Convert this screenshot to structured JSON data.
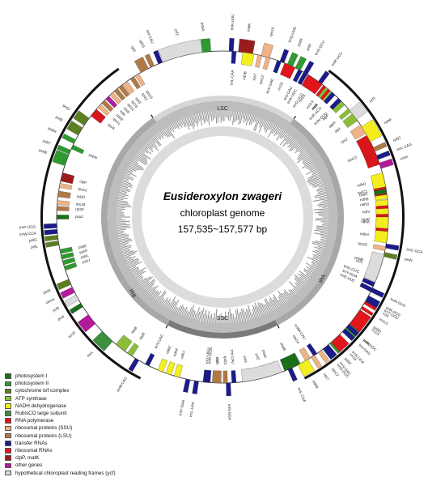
{
  "title": {
    "species": "Eusideroxylon zwageri",
    "subtitle": "chloroplast genome",
    "size": "157,535~157,577 bp"
  },
  "regions": {
    "lsc": "LSC",
    "ssc": "SSC",
    "ira": "IRA",
    "irb": "IRB"
  },
  "colors": {
    "photosystem_I": "#1a6f1a",
    "photosystem_II": "#2f9a2f",
    "cytochrome": "#5c7f22",
    "atp": "#8abe3a",
    "nadh": "#f4ee1e",
    "rubisco": "#3d8f3d",
    "rna_pol": "#d8161c",
    "ssu": "#eeb386",
    "lsu": "#b07a48",
    "trna": "#1b1b8a",
    "rrna": "#e0161c",
    "clpp": "#9b1c1c",
    "other": "#b4199a",
    "ycf": "#dcdcdc"
  },
  "legend": [
    {
      "label": "photosystem I",
      "color": "#1a6f1a"
    },
    {
      "label": "photosystem II",
      "color": "#2f9a2f"
    },
    {
      "label": "cytochrome b/f complex",
      "color": "#5c7f22"
    },
    {
      "label": "ATP synthase",
      "color": "#8abe3a"
    },
    {
      "label": "NADH dehydrogenase",
      "color": "#f4ee1e"
    },
    {
      "label": "RubisCO large subunit",
      "color": "#3d8f3d"
    },
    {
      "label": "RNA polymerase",
      "color": "#d8161c"
    },
    {
      "label": "ribosomal proteins (SSU)",
      "color": "#eeb386"
    },
    {
      "label": "ribosomal proteins (LSU)",
      "color": "#b07a48"
    },
    {
      "label": "transfer RNAs",
      "color": "#1b1b8a"
    },
    {
      "label": "ribosomal RNAs",
      "color": "#e0161c"
    },
    {
      "label": "clpP, matK",
      "color": "#9b1c1c"
    },
    {
      "label": "other genes",
      "color": "#b4199a"
    },
    {
      "label": "hypothetical chloroplast reading frames (ycf)",
      "color": "#dcdcdc"
    }
  ],
  "genes": [
    {
      "name": "psbA",
      "cat": "photosystem_II",
      "angle": 354,
      "side": "out",
      "span": 4
    },
    {
      "name": "trnK-UUU",
      "cat": "trna",
      "angle": 3,
      "side": "out",
      "span": 1.5
    },
    {
      "name": "matK",
      "cat": "clpp",
      "angle": 8,
      "side": "out",
      "span": 5
    },
    {
      "name": "rps16",
      "cat": "ssu",
      "angle": 15,
      "side": "out",
      "span": 3
    },
    {
      "name": "trnQ-UUG",
      "cat": "trna",
      "angle": 21,
      "side": "out",
      "span": 1.5
    },
    {
      "name": "psbK",
      "cat": "photosystem_II",
      "angle": 24,
      "side": "out",
      "span": 2
    },
    {
      "name": "psbI",
      "cat": "photosystem_II",
      "angle": 27,
      "side": "out",
      "span": 2
    },
    {
      "name": "trnS-GCU",
      "cat": "trna",
      "angle": 30,
      "side": "out",
      "span": 1.5
    },
    {
      "name": "trnG-UCC",
      "cat": "trna",
      "angle": 33,
      "side": "in",
      "span": 1.5
    },
    {
      "name": "trnR-UCU",
      "cat": "trna",
      "angle": 36,
      "side": "out",
      "span": 1.5
    },
    {
      "name": "atpA",
      "cat": "atp",
      "angle": 40,
      "side": "in",
      "span": 5
    },
    {
      "name": "atpF",
      "cat": "atp",
      "angle": 46,
      "side": "in",
      "span": 3
    },
    {
      "name": "atpH",
      "cat": "atp",
      "angle": 50,
      "side": "in",
      "span": 1.5
    },
    {
      "name": "atpI",
      "cat": "atp",
      "angle": 53,
      "side": "in",
      "span": 3
    },
    {
      "name": "rps2",
      "cat": "ssu",
      "angle": 58,
      "side": "in",
      "span": 3.5
    },
    {
      "name": "rpoC2",
      "cat": "rna_pol",
      "angle": 66,
      "side": "in",
      "span": 11
    },
    {
      "name": "rpoC1",
      "cat": "rna_pol",
      "angle": 80,
      "side": "in",
      "span": 7
    },
    {
      "name": "rpoB",
      "cat": "rna_pol",
      "angle": 91,
      "side": "in",
      "span": 10
    },
    {
      "name": "trnC-GCA",
      "cat": "trna",
      "angle": 100,
      "side": "out",
      "span": 1.5
    },
    {
      "name": "petN",
      "cat": "cytochrome",
      "angle": 103,
      "side": "out",
      "span": 1.5
    },
    {
      "name": "psbM",
      "cat": "photosystem_II",
      "angle": 107,
      "side": "in",
      "span": 1.5
    },
    {
      "name": "trnD-GUC",
      "cat": "trna",
      "angle": 112,
      "side": "in",
      "span": 1.5
    },
    {
      "name": "trnY-GUA",
      "cat": "trna",
      "angle": 114,
      "side": "in",
      "span": 1.5
    },
    {
      "name": "trnE-UUC",
      "cat": "trna",
      "angle": 116,
      "side": "in",
      "span": 1.5
    },
    {
      "name": "trnT-GGU",
      "cat": "trna",
      "angle": 120,
      "side": "out",
      "span": 1.5
    },
    {
      "name": "psbD",
      "cat": "photosystem_II",
      "angle": 126,
      "side": "out",
      "span": 4
    },
    {
      "name": "psbC",
      "cat": "photosystem_II",
      "angle": 131,
      "side": "out",
      "span": 5
    },
    {
      "name": "trnS-UGA",
      "cat": "trna",
      "angle": 136,
      "side": "out",
      "span": 1.5
    },
    {
      "name": "psbZ",
      "cat": "photosystem_II",
      "angle": 139,
      "side": "out",
      "span": 1.5
    },
    {
      "name": "trnG-GCC",
      "cat": "trna",
      "angle": 142,
      "side": "out",
      "span": 1.5
    },
    {
      "name": "trnfM-CAU",
      "cat": "trna",
      "angle": 146,
      "side": "in",
      "span": 1.5
    },
    {
      "name": "rps14",
      "cat": "ssu",
      "angle": 149,
      "side": "in",
      "span": 2
    },
    {
      "name": "psaB",
      "cat": "photosystem_I",
      "angle": 155,
      "side": "in",
      "span": 6
    },
    {
      "name": "psaA",
      "cat": "photosystem_I",
      "angle": 163,
      "side": "in",
      "span": 6
    },
    {
      "name": "ycf3",
      "cat": "ycf",
      "angle": 171,
      "side": "in",
      "span": 3
    },
    {
      "name": "trnS-GGA",
      "cat": "trna",
      "angle": 178,
      "side": "out",
      "span": 1.5
    },
    {
      "name": "rps4",
      "cat": "ssu",
      "angle": 182,
      "side": "in",
      "span": 3
    },
    {
      "name": "trnT-UGU",
      "cat": "trna",
      "angle": 186,
      "side": "in",
      "span": 1.5
    },
    {
      "name": "trnL-UAA",
      "cat": "trna",
      "angle": 189,
      "side": "out",
      "span": 1.5
    },
    {
      "name": "trnF-GAA",
      "cat": "trna",
      "angle": 192,
      "side": "out",
      "span": 1.5
    },
    {
      "name": "ndhJ",
      "cat": "nadh",
      "angle": 196,
      "side": "in",
      "span": 2
    },
    {
      "name": "ndhK",
      "cat": "nadh",
      "angle": 199,
      "side": "in",
      "span": 2
    },
    {
      "name": "ndhC",
      "cat": "nadh",
      "angle": 202,
      "side": "in",
      "span": 2
    },
    {
      "name": "trnV-UAC",
      "cat": "trna",
      "angle": 207,
      "side": "in",
      "span": 1.5
    },
    {
      "name": "trnM-CAU",
      "cat": "trna",
      "angle": 211,
      "side": "out",
      "span": 1.5
    },
    {
      "name": "atpE",
      "cat": "atp",
      "angle": 214,
      "side": "in",
      "span": 2
    },
    {
      "name": "atpB",
      "cat": "atp",
      "angle": 218,
      "side": "in",
      "span": 4
    },
    {
      "name": "rbcL",
      "cat": "rubisco",
      "angle": 224,
      "side": "out",
      "span": 5
    },
    {
      "name": "accD",
      "cat": "other",
      "angle": 232,
      "side": "out",
      "span": 4
    },
    {
      "name": "psaI",
      "cat": "photosystem_I",
      "angle": 238,
      "side": "out",
      "span": 1.5
    },
    {
      "name": "ycf4",
      "cat": "ycf",
      "angle": 241,
      "side": "out",
      "span": 2
    },
    {
      "name": "cemA",
      "cat": "other",
      "angle": 244,
      "side": "out",
      "span": 2
    },
    {
      "name": "petA",
      "cat": "cytochrome",
      "angle": 247,
      "side": "out",
      "span": 2
    },
    {
      "name": "psbJ",
      "cat": "photosystem_II",
      "angle": 252,
      "side": "in",
      "span": 1.5
    },
    {
      "name": "psbL",
      "cat": "photosystem_II",
      "angle": 254,
      "side": "in",
      "span": 1.5
    },
    {
      "name": "psbF",
      "cat": "photosystem_II",
      "angle": 256,
      "side": "in",
      "span": 1.5
    },
    {
      "name": "psbE",
      "cat": "photosystem_II",
      "angle": 258,
      "side": "in",
      "span": 1.5
    },
    {
      "name": "petL",
      "cat": "cytochrome",
      "angle": 261,
      "side": "out",
      "span": 1.5
    },
    {
      "name": "petG",
      "cat": "cytochrome",
      "angle": 263,
      "side": "out",
      "span": 1.5
    },
    {
      "name": "trnW-CCA",
      "cat": "trna",
      "angle": 265,
      "side": "out",
      "span": 1.5
    },
    {
      "name": "trnP-UGG",
      "cat": "trna",
      "angle": 267,
      "side": "out",
      "span": 1.5
    },
    {
      "name": "psaJ",
      "cat": "photosystem_I",
      "angle": 270,
      "side": "in",
      "span": 1.5
    },
    {
      "name": "rpl33",
      "cat": "lsu",
      "angle": 273,
      "side": "in",
      "span": 1.5
    },
    {
      "name": "rps18",
      "cat": "ssu",
      "angle": 275,
      "side": "in",
      "span": 1.5
    },
    {
      "name": "rpl20",
      "cat": "lsu",
      "angle": 278,
      "side": "in",
      "span": 2
    },
    {
      "name": "rps12",
      "cat": "ssu",
      "angle": 281,
      "side": "in",
      "span": 1.5
    },
    {
      "name": "clpP",
      "cat": "clpp",
      "angle": 284,
      "side": "in",
      "span": 3
    },
    {
      "name": "psbB",
      "cat": "photosystem_II",
      "angle": 290,
      "side": "out",
      "span": 4
    },
    {
      "name": "psbT",
      "cat": "photosystem_II",
      "angle": 293,
      "side": "out",
      "span": 1.5
    },
    {
      "name": "psbN",
      "cat": "photosystem_II",
      "angle": 295,
      "side": "in",
      "span": 1.5
    },
    {
      "name": "psbH",
      "cat": "photosystem_II",
      "angle": 297,
      "side": "out",
      "span": 1.5
    },
    {
      "name": "petB",
      "cat": "cytochrome",
      "angle": 301,
      "side": "out",
      "span": 3
    },
    {
      "name": "petD",
      "cat": "cytochrome",
      "angle": 305,
      "side": "out",
      "span": 3
    },
    {
      "name": "rpoA",
      "cat": "rna_pol",
      "angle": 309,
      "side": "in",
      "span": 3
    },
    {
      "name": "rps11",
      "cat": "ssu",
      "angle": 312,
      "side": "in",
      "span": 1.5
    },
    {
      "name": "rpl36",
      "cat": "lsu",
      "angle": 314,
      "side": "in",
      "span": 1.5
    },
    {
      "name": "infA",
      "cat": "other",
      "angle": 316,
      "side": "in",
      "span": 1.5
    },
    {
      "name": "rps8",
      "cat": "ssu",
      "angle": 318,
      "side": "in",
      "span": 1.5
    },
    {
      "name": "rpl14",
      "cat": "lsu",
      "angle": 320,
      "side": "in",
      "span": 1.5
    },
    {
      "name": "rpl16",
      "cat": "lsu",
      "angle": 322,
      "side": "in",
      "span": 1.5
    },
    {
      "name": "rps3",
      "cat": "ssu",
      "angle": 324,
      "side": "in",
      "span": 2
    },
    {
      "name": "rpl22",
      "cat": "lsu",
      "angle": 327,
      "side": "in",
      "span": 1.5
    },
    {
      "name": "rps19",
      "cat": "ssu",
      "angle": 329,
      "side": "in",
      "span": 1.5
    },
    {
      "name": "rpl2",
      "cat": "lsu",
      "angle": 332,
      "side": "out",
      "span": 3
    },
    {
      "name": "rpl23",
      "cat": "lsu",
      "angle": 335,
      "side": "out",
      "span": 1.5
    },
    {
      "name": "trnI-CAU",
      "cat": "trna",
      "angle": 338,
      "side": "out",
      "span": 1.5
    },
    {
      "name": "ycf2",
      "cat": "ycf",
      "angle": 346,
      "side": "out",
      "span": 14
    },
    {
      "name": "trnL-CAA",
      "cat": "trna",
      "angle": 4,
      "side": "in",
      "span": 1.5,
      "ring": "right"
    },
    {
      "name": "ndhB",
      "cat": "nadh",
      "angle": 9,
      "side": "in",
      "span": 4,
      "ring": "right"
    },
    {
      "name": "rps7",
      "cat": "ssu",
      "angle": 13,
      "side": "in",
      "span": 1.5,
      "ring": "right"
    },
    {
      "name": "rps12",
      "cat": "ssu",
      "angle": 16,
      "side": "in",
      "span": 1.5,
      "ring": "right"
    },
    {
      "name": "trnV-GAC",
      "cat": "trna",
      "angle": 20,
      "side": "in",
      "span": 1.5,
      "ring": "right"
    },
    {
      "name": "rrn16",
      "cat": "rrna",
      "angle": 24,
      "side": "in",
      "span": 4,
      "ring": "right"
    },
    {
      "name": "trnI-GAU",
      "cat": "trna",
      "angle": 28,
      "side": "in",
      "span": 1.5,
      "ring": "right"
    },
    {
      "name": "trnA-UGC",
      "cat": "trna",
      "angle": 30,
      "side": "in",
      "span": 1.5,
      "ring": "right"
    },
    {
      "name": "rrn23",
      "cat": "rrna",
      "angle": 34,
      "side": "in",
      "span": 6,
      "ring": "right"
    },
    {
      "name": "rrn4.5",
      "cat": "rrna",
      "angle": 38,
      "side": "in",
      "span": 1,
      "ring": "right"
    },
    {
      "name": "rrn5",
      "cat": "rrna",
      "angle": 40,
      "side": "in",
      "span": 1,
      "ring": "right"
    },
    {
      "name": "trnR-ACG",
      "cat": "trna",
      "angle": 42,
      "side": "in",
      "span": 1.5,
      "ring": "right"
    },
    {
      "name": "trnN-GUU",
      "cat": "trna",
      "angle": 45,
      "side": "in",
      "span": 1.5,
      "ring": "right"
    },
    {
      "name": "ycf1",
      "cat": "ycf",
      "angle": 52,
      "side": "out",
      "span": 4,
      "ring": "right"
    },
    {
      "name": "ndhF",
      "cat": "nadh",
      "angle": 60,
      "side": "out",
      "span": 6,
      "ring": "right"
    },
    {
      "name": "rpl32",
      "cat": "lsu",
      "angle": 66,
      "side": "out",
      "span": 1.5,
      "ring": "right"
    },
    {
      "name": "trnL-UAG",
      "cat": "trna",
      "angle": 69,
      "side": "out",
      "span": 1.5,
      "ring": "right"
    },
    {
      "name": "ccsA",
      "cat": "other",
      "angle": 72,
      "side": "out",
      "span": 2,
      "ring": "right"
    },
    {
      "name": "ndhD",
      "cat": "nadh",
      "angle": 77,
      "side": "in",
      "span": 5,
      "ring": "right"
    },
    {
      "name": "psaC",
      "cat": "photosystem_I",
      "angle": 81,
      "side": "in",
      "span": 1.5,
      "ring": "right"
    },
    {
      "name": "ndhE",
      "cat": "nadh",
      "angle": 83,
      "side": "in",
      "span": 1.5,
      "ring": "right"
    },
    {
      "name": "ndhG",
      "cat": "nadh",
      "angle": 85,
      "side": "in",
      "span": 2,
      "ring": "right"
    },
    {
      "name": "ndhI",
      "cat": "nadh",
      "angle": 88,
      "side": "in",
      "span": 2,
      "ring": "right"
    },
    {
      "name": "ndhA",
      "cat": "nadh",
      "angle": 92,
      "side": "in",
      "span": 4,
      "ring": "right"
    },
    {
      "name": "ndhH",
      "cat": "nadh",
      "angle": 97,
      "side": "in",
      "span": 4,
      "ring": "right"
    },
    {
      "name": "rps15",
      "cat": "ssu",
      "angle": 101,
      "side": "in",
      "span": 1.5,
      "ring": "right"
    },
    {
      "name": "ycf1",
      "cat": "ycf",
      "angle": 108,
      "side": "in",
      "span": 10,
      "ring": "right"
    },
    {
      "name": "trnN-GUU",
      "cat": "trna",
      "angle": 116,
      "side": "out",
      "span": 1.5,
      "ring": "right"
    },
    {
      "name": "trnR-ACG",
      "cat": "trna",
      "angle": 119,
      "side": "out",
      "span": 1.5,
      "ring": "right"
    },
    {
      "name": "rrn5",
      "cat": "rrna",
      "angle": 121,
      "side": "out",
      "span": 1,
      "ring": "right"
    },
    {
      "name": "rrn4.5",
      "cat": "rrna",
      "angle": 123,
      "side": "out",
      "span": 1,
      "ring": "right"
    },
    {
      "name": "rrn23",
      "cat": "rrna",
      "angle": 127,
      "side": "out",
      "span": 6,
      "ring": "right"
    },
    {
      "name": "trnA-UGC",
      "cat": "trna",
      "angle": 131,
      "side": "out",
      "span": 1.5,
      "ring": "right"
    },
    {
      "name": "trnI-GAU",
      "cat": "trna",
      "angle": 133,
      "side": "out",
      "span": 1.5,
      "ring": "right"
    },
    {
      "name": "rrn16",
      "cat": "rrna",
      "angle": 137,
      "side": "out",
      "span": 4,
      "ring": "right"
    },
    {
      "name": "trnV-GAC",
      "cat": "trna",
      "angle": 141,
      "side": "out",
      "span": 1.5,
      "ring": "right"
    },
    {
      "name": "rps12",
      "cat": "ssu",
      "angle": 144,
      "side": "out",
      "span": 1.5,
      "ring": "right"
    },
    {
      "name": "rps7",
      "cat": "ssu",
      "angle": 147,
      "side": "out",
      "span": 1.5,
      "ring": "right"
    },
    {
      "name": "ndhB",
      "cat": "nadh",
      "angle": 151,
      "side": "out",
      "span": 4,
      "ring": "right"
    },
    {
      "name": "trnL-CAA",
      "cat": "trna",
      "angle": 156,
      "side": "out",
      "span": 1.5,
      "ring": "right"
    },
    {
      "name": "ycf2",
      "cat": "ycf",
      "angle": 166,
      "side": "in",
      "span": 14,
      "ring": "right"
    },
    {
      "name": "trnI-CAU",
      "cat": "trna",
      "angle": 176,
      "side": "in",
      "span": 1.5,
      "ring": "right"
    },
    {
      "name": "rpl23",
      "cat": "lsu",
      "angle": 179,
      "side": "in",
      "span": 1.5,
      "ring": "right"
    },
    {
      "name": "rpl2",
      "cat": "lsu",
      "angle": 182,
      "side": "in",
      "span": 3,
      "ring": "right"
    },
    {
      "name": "trnH-GUG",
      "cat": "trna",
      "angle": 185,
      "side": "in",
      "span": 1.5,
      "ring": "right"
    }
  ]
}
